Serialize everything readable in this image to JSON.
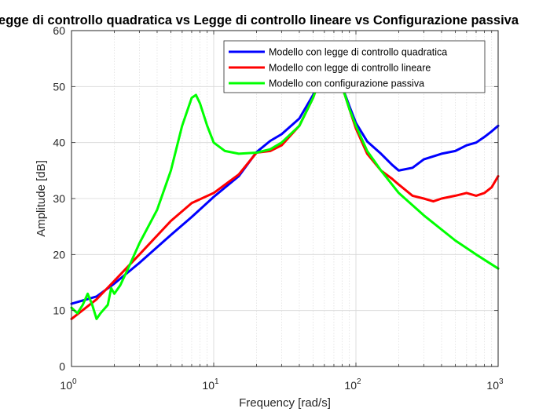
{
  "chart_data": {
    "type": "line",
    "title": "Legge di controllo quadratica vs Legge di controllo lineare vs Configurazione passiva",
    "xlabel": "Frequency [rad/s]",
    "ylabel": "Amplitude [dB]",
    "xscale": "log",
    "xlim": [
      1,
      1000
    ],
    "ylim": [
      0,
      60
    ],
    "x_ticks": [
      {
        "base": "10",
        "exp": "0",
        "value": 1
      },
      {
        "base": "10",
        "exp": "1",
        "value": 10
      },
      {
        "base": "10",
        "exp": "2",
        "value": 100
      },
      {
        "base": "10",
        "exp": "3",
        "value": 1000
      }
    ],
    "y_ticks": [
      "0",
      "10",
      "20",
      "30",
      "40",
      "50",
      "60"
    ],
    "grid": true,
    "minor_grid": true,
    "legend_position": "top-right",
    "series": [
      {
        "name": "Modello con legge di controllo quadratica",
        "color": "#0000ff",
        "x": [
          1,
          1.5,
          2,
          3,
          5,
          7,
          10,
          15,
          20,
          25,
          30,
          40,
          50,
          55,
          60,
          65,
          70,
          75,
          80,
          90,
          100,
          120,
          150,
          180,
          200,
          250,
          300,
          400,
          500,
          600,
          700,
          800,
          900,
          1000
        ],
        "y": [
          11.2,
          12.5,
          14.8,
          18.5,
          23.5,
          26.7,
          30.3,
          34.0,
          38.3,
          40.3,
          41.5,
          44.3,
          48.5,
          51.0,
          53.0,
          53.5,
          53.0,
          52.0,
          50.0,
          46.5,
          43.5,
          40.2,
          38.0,
          36.0,
          35.0,
          35.5,
          37.0,
          38.0,
          38.5,
          39.5,
          40.0,
          41.0,
          42.0,
          43.0
        ]
      },
      {
        "name": "Modello con legge di controllo lineare",
        "color": "#ff0000",
        "x": [
          1,
          1.5,
          2,
          3,
          5,
          7,
          10,
          15,
          20,
          25,
          30,
          40,
          50,
          55,
          60,
          65,
          70,
          75,
          80,
          90,
          100,
          120,
          150,
          180,
          200,
          250,
          300,
          350,
          400,
          500,
          600,
          700,
          800,
          900,
          1000
        ],
        "y": [
          8.5,
          12.0,
          15.3,
          20.0,
          26.0,
          29.2,
          31.0,
          34.3,
          38.2,
          38.5,
          39.5,
          43.0,
          48.0,
          51.0,
          53.0,
          53.5,
          53.0,
          52.0,
          50.0,
          46.0,
          42.5,
          38.0,
          35.0,
          33.5,
          32.5,
          30.5,
          30.0,
          29.5,
          30.0,
          30.5,
          31.0,
          30.5,
          31.0,
          32.0,
          34.0
        ]
      },
      {
        "name": "Modello con configurazione passiva",
        "color": "#00ff00",
        "x": [
          1,
          1.1,
          1.2,
          1.3,
          1.4,
          1.5,
          1.6,
          1.8,
          1.9,
          2.0,
          2.2,
          2.5,
          3,
          4,
          5,
          6,
          7,
          7.5,
          8,
          9,
          10,
          12,
          15,
          20,
          25,
          30,
          40,
          50,
          55,
          60,
          65,
          70,
          75,
          80,
          90,
          100,
          120,
          150,
          200,
          300,
          500,
          700,
          1000
        ],
        "y": [
          10.5,
          9.5,
          11.0,
          13.0,
          11.0,
          8.5,
          9.5,
          11.0,
          14.0,
          13.0,
          14.5,
          17.5,
          22.0,
          28.0,
          35.0,
          43.0,
          48.0,
          48.5,
          47.0,
          43.0,
          40.0,
          38.5,
          38.0,
          38.2,
          38.8,
          40.0,
          43.0,
          48.0,
          51.0,
          53.0,
          53.5,
          53.0,
          52.0,
          50.0,
          46.0,
          43.0,
          38.5,
          35.0,
          31.0,
          27.0,
          22.5,
          20.0,
          17.5
        ]
      }
    ]
  }
}
